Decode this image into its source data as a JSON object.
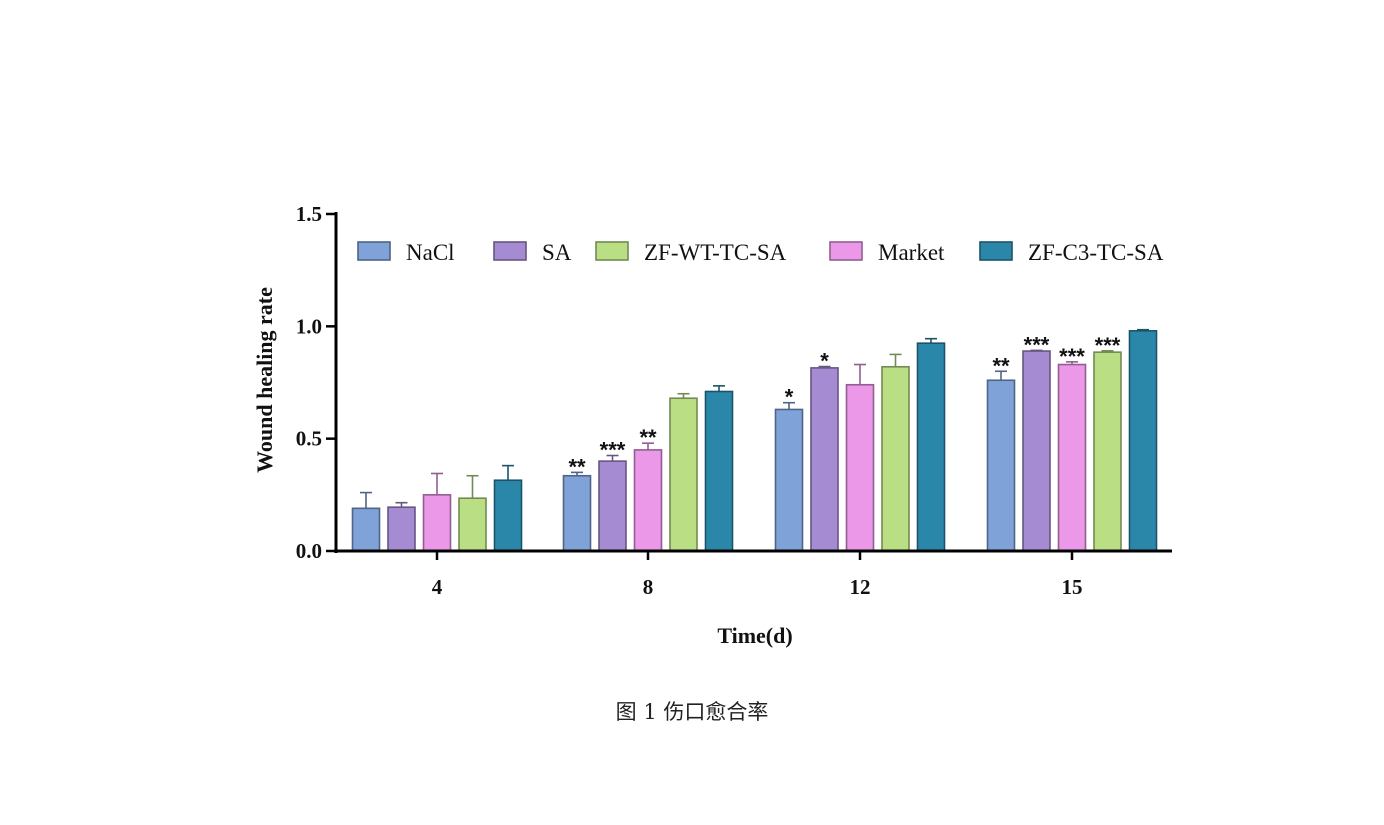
{
  "caption": "图 1 伤口愈合率",
  "colors": {
    "NaCl": "#7fa2d8",
    "SA": "#a58bd2",
    "ZF-WT-TC-SA": "#b9de84",
    "Market": "#ec98e8",
    "ZF-C3-TC-SA": "#2b87a9"
  },
  "chart_data": {
    "type": "bar",
    "xlabel": "Time(d)",
    "ylabel": "Wound healing rate",
    "ylim": [
      0,
      1.5
    ],
    "yticks": [
      "0.0",
      "0.5",
      "1.0",
      "1.5"
    ],
    "categories": [
      "4",
      "8",
      "12",
      "15"
    ],
    "legend_position": "top",
    "series": [
      {
        "name": "NaCl",
        "values": [
          0.19,
          0.335,
          0.63,
          0.76
        ],
        "errors": [
          0.07,
          0.015,
          0.03,
          0.04
        ],
        "significance": [
          "",
          "**",
          "*",
          "**"
        ]
      },
      {
        "name": "SA",
        "values": [
          0.195,
          0.4,
          0.815,
          0.89
        ],
        "errors": [
          0.02,
          0.025,
          0.006,
          0.003
        ],
        "significance": [
          "",
          "***",
          "*",
          "***"
        ]
      },
      {
        "name": "Market",
        "values": [
          0.25,
          0.45,
          0.74,
          0.83
        ],
        "errors": [
          0.095,
          0.03,
          0.09,
          0.012
        ],
        "significance": [
          "",
          "**",
          "",
          "***"
        ]
      },
      {
        "name": "ZF-WT-TC-SA",
        "values": [
          0.235,
          0.68,
          0.82,
          0.885
        ],
        "errors": [
          0.1,
          0.02,
          0.055,
          0.006
        ],
        "significance": [
          "",
          "",
          "",
          "***"
        ]
      },
      {
        "name": "ZF-C3-TC-SA",
        "values": [
          0.315,
          0.71,
          0.925,
          0.98
        ],
        "errors": [
          0.065,
          0.025,
          0.02,
          0.005
        ],
        "significance": [
          "",
          "",
          "",
          ""
        ]
      }
    ],
    "legend_order": [
      "NaCl",
      "SA",
      "ZF-WT-TC-SA",
      "Market",
      "ZF-C3-TC-SA"
    ]
  }
}
